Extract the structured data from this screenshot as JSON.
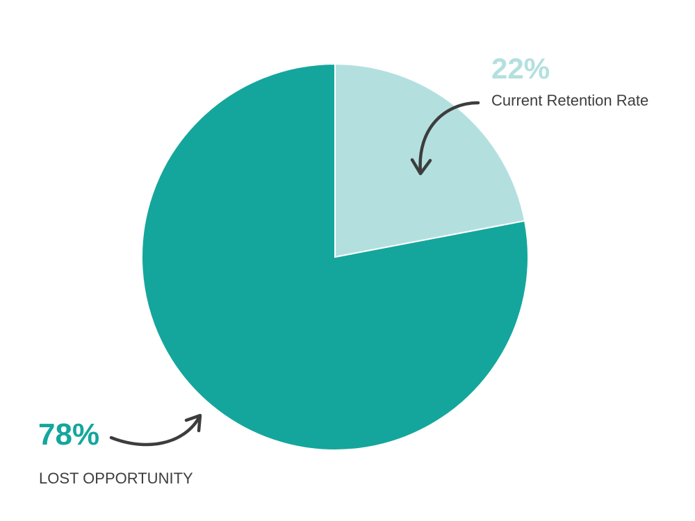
{
  "chart_data": {
    "type": "pie",
    "slices": [
      {
        "value": 22,
        "value_label": "22%",
        "label": "Current Retention Rate",
        "color": "#b3e0df",
        "label_color": "#b3e0df"
      },
      {
        "value": 78,
        "value_label": "78%",
        "label": "LOST OPPORTUNITY",
        "color": "#14a69c",
        "label_color": "#14a69c"
      }
    ],
    "start_angle_deg": 0,
    "direction": "clockwise",
    "legend": "none",
    "annotation_color": "#3d3d3d",
    "caption_color": "#3d3d3d"
  }
}
